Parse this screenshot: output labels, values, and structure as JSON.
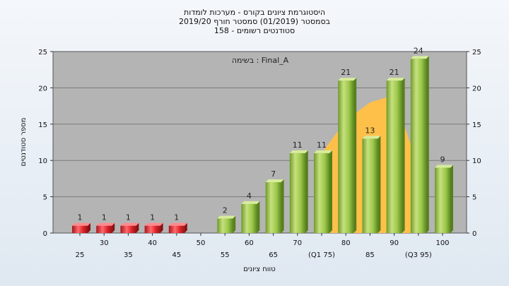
{
  "chart_data": {
    "type": "bar",
    "title_lines": [
      "היסטוגרמת ציונים בקורס - מערכות לומדות",
      "בסמסטר  (01/2019)  סמסטר חורף 2019/20",
      "סטודנטים רשומים - 158"
    ],
    "annotation": "בשימה : Final_A",
    "xlabel": "טווח ציונים",
    "ylabel": "מספר סטודנטים",
    "ylim": [
      0,
      25
    ],
    "yticks": [
      0,
      5,
      10,
      15,
      20,
      25
    ],
    "grid": true,
    "categories": [
      "25",
      "30",
      "35",
      "40",
      "45",
      "50",
      "55",
      "60",
      "65",
      "70",
      "75",
      "80",
      "85",
      "90",
      "95",
      "100"
    ],
    "tick_labels": [
      "25",
      "30",
      "35",
      "40",
      "45",
      "50",
      "55",
      "60",
      "65",
      "70",
      "(Q1 75)",
      "80",
      "85",
      "90",
      "(Q3 95)",
      "100"
    ],
    "values": [
      1,
      1,
      1,
      1,
      1,
      0,
      2,
      4,
      7,
      11,
      11,
      21,
      13,
      21,
      24,
      9
    ],
    "bar_colors": [
      "#e0262c",
      "#e0262c",
      "#e0262c",
      "#e0262c",
      "#e0262c",
      "#e0262c",
      "#9cc84a",
      "#9cc84a",
      "#9cc84a",
      "#9cc84a",
      "#9cc84a",
      "#9cc84a",
      "#9cc84a",
      "#9cc84a",
      "#9cc84a",
      "#9cc84a"
    ],
    "area_series": {
      "color": "#ffc04a",
      "points": [
        [
          75,
          11
        ],
        [
          80,
          15.5
        ],
        [
          85,
          18
        ],
        [
          90,
          19
        ],
        [
          95,
          9
        ]
      ]
    },
    "plot_background": "#b4b4b4"
  }
}
